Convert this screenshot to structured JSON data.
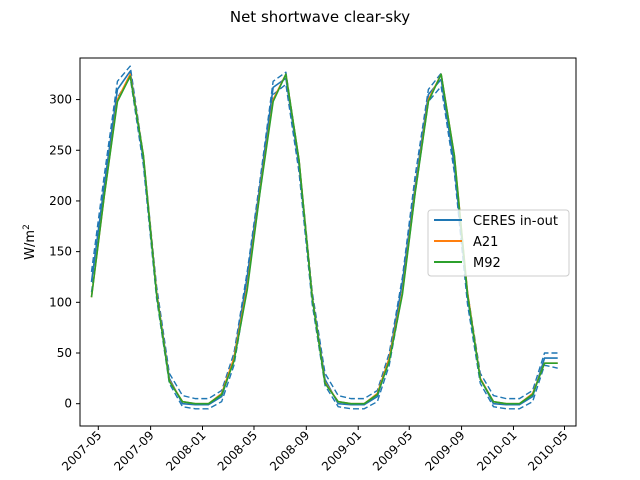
{
  "chart_data": {
    "type": "line",
    "title": "Net shortwave clear-sky",
    "ylabel_base": "W/m",
    "ylabel_sup": "2",
    "xlim": [
      "2007-03-19",
      "2010-05-28"
    ],
    "ylim": [
      -22,
      341
    ],
    "x_ticks": [
      "2007-05-01",
      "2007-09-01",
      "2008-01-01",
      "2008-05-01",
      "2008-09-01",
      "2009-01-01",
      "2009-05-01",
      "2009-09-01",
      "2010-01-01",
      "2010-05-01"
    ],
    "x_tick_labels": [
      "2007-05",
      "2007-09",
      "2008-01",
      "2008-05",
      "2008-09",
      "2009-01",
      "2009-05",
      "2009-09",
      "2010-01",
      "2010-05"
    ],
    "y_ticks": [
      0,
      50,
      100,
      150,
      200,
      250,
      300
    ],
    "x": [
      "2007-04-15",
      "2007-05-15",
      "2007-06-15",
      "2007-07-15",
      "2007-08-15",
      "2007-09-15",
      "2007-10-15",
      "2007-11-15",
      "2007-12-15",
      "2008-01-15",
      "2008-02-15",
      "2008-03-15",
      "2008-04-15",
      "2008-05-15",
      "2008-06-15",
      "2008-07-15",
      "2008-08-15",
      "2008-09-15",
      "2008-10-15",
      "2008-11-15",
      "2008-12-15",
      "2009-01-15",
      "2009-02-15",
      "2009-03-15",
      "2009-04-15",
      "2009-05-15",
      "2009-06-15",
      "2009-07-15",
      "2009-08-15",
      "2009-09-15",
      "2009-10-15",
      "2009-11-15",
      "2009-12-15",
      "2010-01-15",
      "2010-02-15",
      "2010-03-15",
      "2010-04-15"
    ],
    "series": [
      {
        "name": "CERES in-out",
        "color": "#1f77b4",
        "values": [
          120,
          215,
          310,
          328,
          240,
          110,
          25,
          0,
          -1,
          -1,
          7,
          45,
          125,
          215,
          312,
          321,
          235,
          105,
          24,
          0,
          -1,
          -1,
          7,
          45,
          120,
          215,
          305,
          320,
          235,
          105,
          25,
          0,
          -1,
          -1,
          7,
          45,
          45
        ],
        "upper": [
          130,
          225,
          318,
          333,
          245,
          116,
          30,
          8,
          5,
          5,
          13,
          50,
          130,
          220,
          318,
          327,
          240,
          110,
          30,
          8,
          5,
          5,
          13,
          50,
          125,
          225,
          310,
          326,
          240,
          110,
          30,
          8,
          5,
          5,
          13,
          50,
          50
        ],
        "lower": [
          110,
          205,
          302,
          322,
          235,
          104,
          20,
          -3,
          -5,
          -5,
          2,
          38,
          115,
          208,
          305,
          315,
          228,
          98,
          18,
          -3,
          -5,
          -5,
          2,
          38,
          110,
          208,
          298,
          313,
          228,
          98,
          20,
          -3,
          -5,
          -5,
          2,
          38,
          35
        ]
      },
      {
        "name": "A21",
        "color": "#ff7f0e",
        "values": [
          105,
          205,
          300,
          325,
          245,
          110,
          23,
          2,
          0,
          0,
          10,
          45,
          115,
          210,
          300,
          325,
          240,
          105,
          21,
          2,
          0,
          0,
          10,
          45,
          110,
          210,
          300,
          325,
          245,
          110,
          25,
          2,
          0,
          0,
          10,
          40,
          40
        ]
      },
      {
        "name": "M92",
        "color": "#2ca02c",
        "values": [
          105,
          205,
          298,
          323,
          245,
          108,
          22,
          2,
          0,
          0,
          9,
          42,
          112,
          208,
          298,
          325,
          240,
          104,
          20,
          2,
          0,
          0,
          9,
          42,
          108,
          208,
          298,
          325,
          245,
          108,
          24,
          2,
          0,
          0,
          9,
          40,
          40
        ]
      }
    ],
    "legend": {
      "placement": "center-right",
      "entries": [
        "CERES in-out",
        "A21",
        "M92"
      ]
    },
    "grid": false
  }
}
